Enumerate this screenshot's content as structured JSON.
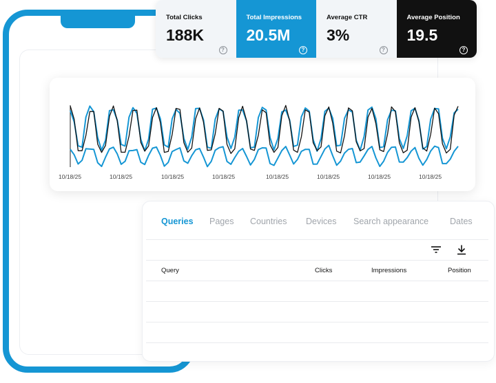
{
  "metrics": {
    "clicks": {
      "label": "Total Clicks",
      "value": "188K"
    },
    "impressions": {
      "label": "Total Impressions",
      "value": "20.5M"
    },
    "ctr": {
      "label": "Average CTR",
      "value": "3%"
    },
    "position": {
      "label": "Average Position",
      "value": "19.5"
    },
    "help_glyph": "?"
  },
  "chart": {
    "x_ticks": [
      "10/18/25",
      "10/18/25",
      "10/18/25",
      "10/18/25",
      "10/18/25",
      "10/18/25",
      "10/18/25",
      "10/18/25"
    ],
    "colors": {
      "impressions": "#1596d4",
      "position": "#111111",
      "clicks": "#1596d4"
    }
  },
  "tabs": [
    {
      "label": "Queries",
      "active": true
    },
    {
      "label": "Pages",
      "active": false
    },
    {
      "label": "Countries",
      "active": false
    },
    {
      "label": "Devices",
      "active": false
    },
    {
      "label": "Search appearance",
      "active": false
    },
    {
      "label": "Dates",
      "active": false
    }
  ],
  "toolbar": {
    "filter_icon": "filter-icon",
    "download_icon": "download-icon"
  },
  "table": {
    "headers": {
      "query": "Query",
      "clicks": "Clicks",
      "impressions": "Impressions",
      "position": "Position"
    }
  }
}
